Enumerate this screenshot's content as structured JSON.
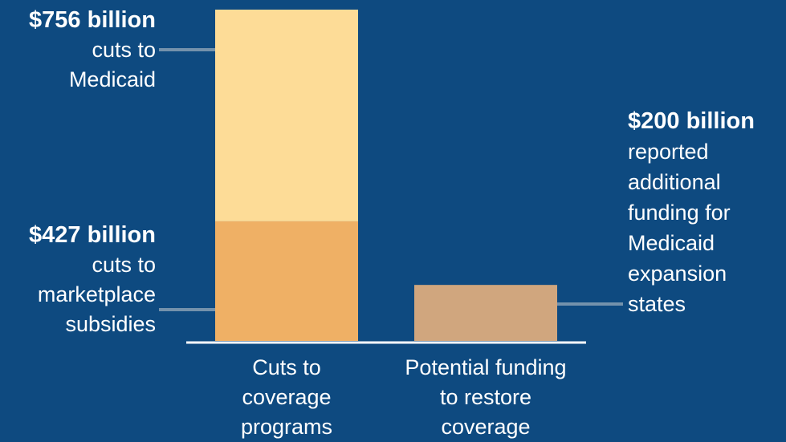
{
  "colors": {
    "background": "#0e4a80",
    "medicaid_cuts": "#fddc97",
    "marketplace_cuts": "#efb065",
    "potential_funding": "#d0a67e",
    "text": "#ffffff",
    "leader_line": "#d9d9d9"
  },
  "chart_data": {
    "type": "bar",
    "stacked": true,
    "categories": [
      "Cuts to coverage programs",
      "Potential funding to restore coverage"
    ],
    "category_label_lines": [
      [
        "Cuts to",
        "coverage",
        "programs"
      ],
      [
        "Potential funding",
        "to restore",
        "coverage"
      ]
    ],
    "unit": "billion USD",
    "series": [
      {
        "key": "marketplace",
        "values": [
          427,
          0
        ],
        "color": "#efb065"
      },
      {
        "key": "medicaid",
        "values": [
          756,
          0
        ],
        "color": "#fddc97"
      },
      {
        "key": "funding",
        "values": [
          0,
          200
        ],
        "color": "#d0a67e"
      }
    ],
    "ylim": [
      0,
      1183
    ],
    "grid": false,
    "legend": "none",
    "annotations": [
      {
        "key": "medicaid",
        "amount": "$756 billion",
        "lines": [
          "cuts to",
          "Medicaid"
        ]
      },
      {
        "key": "marketplace",
        "amount": "$427 billion",
        "lines": [
          "cuts to",
          "marketplace",
          "subsidies"
        ]
      },
      {
        "key": "funding",
        "amount": "$200 billion",
        "lines": [
          "reported",
          "additional",
          "funding for",
          "Medicaid",
          "expansion",
          "states"
        ]
      }
    ]
  }
}
